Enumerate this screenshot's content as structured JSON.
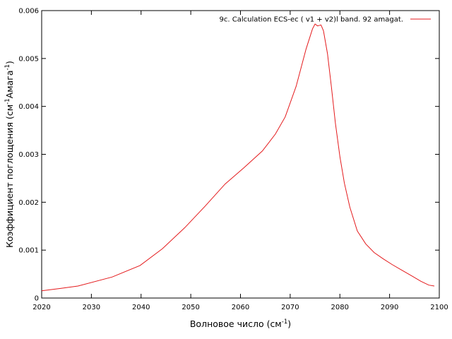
{
  "chart_data": {
    "type": "line",
    "xlabel_main": "Волновое число (см",
    "xlabel_sup": "-1",
    "xlabel_end": ")",
    "ylabel_main": "Коэффициент поглощения (см",
    "ylabel_sup1": "-1",
    "ylabel_mid": "Амага",
    "ylabel_sup2": "-1",
    "ylabel_end": ")",
    "xlim": [
      2020,
      2100
    ],
    "ylim": [
      0,
      0.006
    ],
    "x_ticks": [
      2020,
      2030,
      2040,
      2050,
      2060,
      2070,
      2080,
      2090,
      2100
    ],
    "y_ticks": [
      0,
      0.001,
      0.002,
      0.003,
      0.004,
      0.005,
      0.006
    ],
    "y_tick_labels": [
      "0",
      "0.001",
      "0.002",
      "0.003",
      "0.004",
      "0.005",
      "0.006"
    ],
    "grid": false,
    "legend_position": "top-right",
    "series": [
      {
        "name": "9c. Calculation ECS-ec ( v1 + v2)l band. 92 amagat.",
        "color": "#e41a1c",
        "x": [
          2020,
          2023.8,
          2027.3,
          2034.2,
          2039.8,
          2044.3,
          2048.8,
          2052.9,
          2056.9,
          2060.7,
          2064.4,
          2067.0,
          2069.0,
          2071.2,
          2073.2,
          2074.5,
          2075.0,
          2075.5,
          2076.2,
          2076.7,
          2077.5,
          2078.3,
          2079.1,
          2080.0,
          2080.9,
          2082.0,
          2083.5,
          2085.2,
          2086.9,
          2088.7,
          2090.5,
          2092.5,
          2094.5,
          2096.3,
          2097.9,
          2099.0
        ],
        "y": [
          0.00015,
          0.0002,
          0.00025,
          0.00044,
          0.00068,
          0.00103,
          0.00147,
          0.00192,
          0.00238,
          0.00272,
          0.00307,
          0.00342,
          0.00378,
          0.00442,
          0.0052,
          0.00562,
          0.00572,
          0.00568,
          0.0057,
          0.00558,
          0.0051,
          0.0044,
          0.00365,
          0.00295,
          0.0024,
          0.0019,
          0.0014,
          0.00113,
          0.00095,
          0.00082,
          0.0007,
          0.00058,
          0.00046,
          0.00035,
          0.00027,
          0.00025
        ]
      }
    ]
  }
}
